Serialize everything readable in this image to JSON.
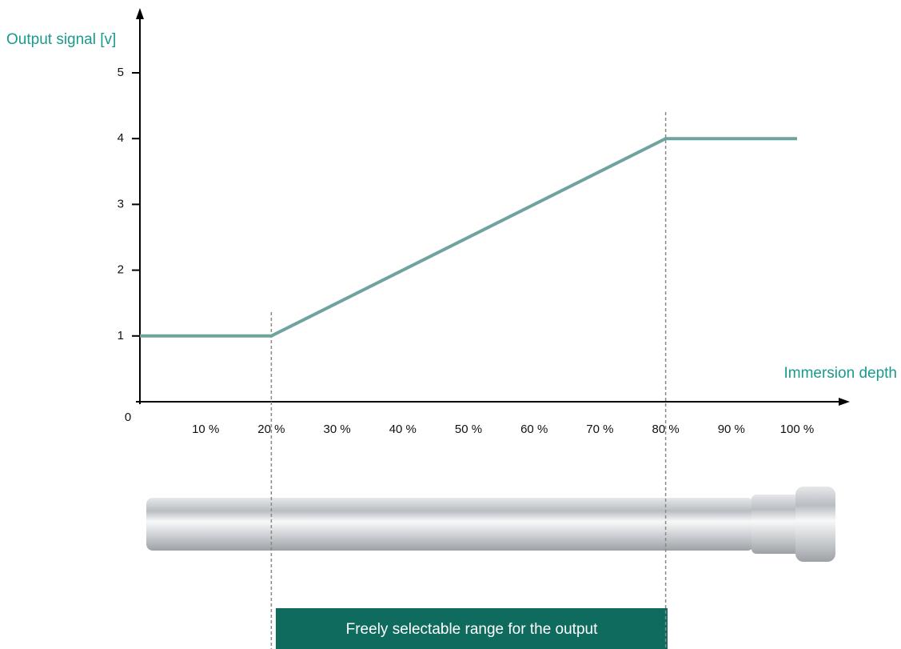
{
  "chart_data": {
    "type": "line",
    "y_label": "Output signal [v]",
    "x_label": "Immersion depth",
    "annotation": "Freely selectable range for the output",
    "x": [
      0,
      20,
      80,
      100
    ],
    "values": [
      1,
      1,
      4,
      4
    ],
    "color": "#6fa39e",
    "range_markers": [
      20,
      80
    ],
    "xlim": [
      0,
      100
    ],
    "ylim": [
      0,
      5
    ],
    "xticks": [
      0,
      {
        "value": 10,
        "label": "10 %"
      },
      {
        "value": 20,
        "label": "20 %"
      },
      {
        "value": 30,
        "label": "30 %"
      },
      {
        "value": 40,
        "label": "40 %"
      },
      {
        "value": 50,
        "label": "50 %"
      },
      {
        "value": 60,
        "label": "60 %"
      },
      {
        "value": 70,
        "label": "70 %"
      },
      {
        "value": 80,
        "label": "80 %"
      },
      {
        "value": 90,
        "label": "90 %"
      },
      {
        "value": 100,
        "label": "100 %"
      }
    ],
    "yticks": [
      1,
      2,
      3,
      4,
      5
    ]
  }
}
